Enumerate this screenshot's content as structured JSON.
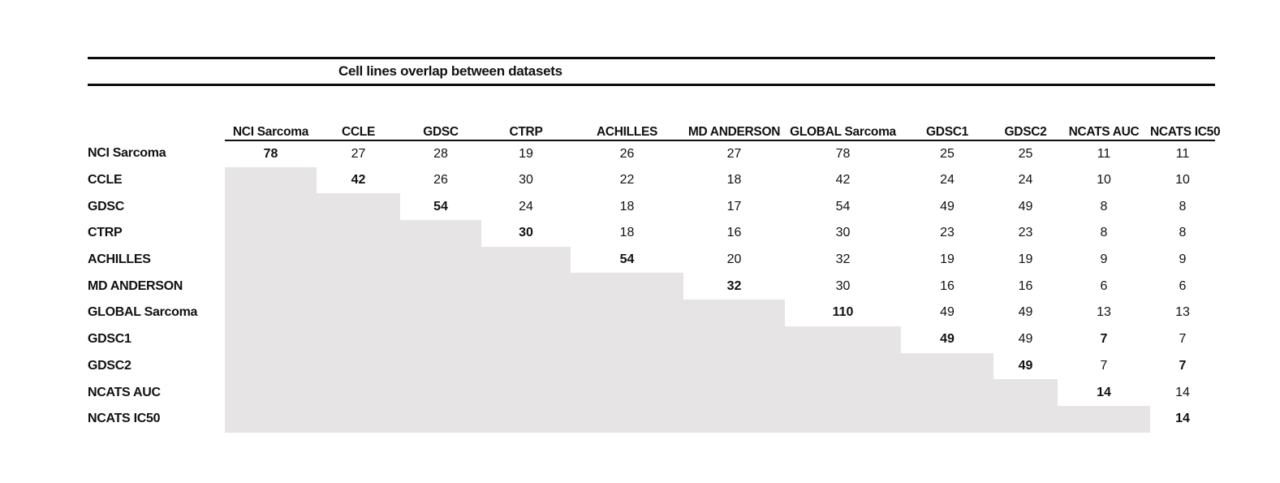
{
  "chart_data": {
    "type": "table",
    "title": "Cell lines overlap between datasets",
    "columns": [
      "NCI Sarcoma",
      "CCLE",
      "GDSC",
      "CTRP",
      "ACHILLES",
      "MD ANDERSON",
      "GLOBAL Sarcoma",
      "GDSC1",
      "GDSC2",
      "NCATS AUC",
      "NCATS IC50"
    ],
    "rows": [
      {
        "label": "NCI Sarcoma",
        "values": [
          78,
          27,
          28,
          19,
          26,
          27,
          78,
          25,
          25,
          11,
          11
        ],
        "bold_cols": [
          0
        ]
      },
      {
        "label": "CCLE",
        "values": [
          null,
          42,
          26,
          30,
          22,
          18,
          42,
          24,
          24,
          10,
          10
        ],
        "bold_cols": [
          1
        ]
      },
      {
        "label": "GDSC",
        "values": [
          null,
          null,
          54,
          24,
          18,
          17,
          54,
          49,
          49,
          8,
          8
        ],
        "bold_cols": [
          2
        ]
      },
      {
        "label": "CTRP",
        "values": [
          null,
          null,
          null,
          30,
          18,
          16,
          30,
          23,
          23,
          8,
          8
        ],
        "bold_cols": [
          3
        ]
      },
      {
        "label": "ACHILLES",
        "values": [
          null,
          null,
          null,
          null,
          54,
          20,
          32,
          19,
          19,
          9,
          9
        ],
        "bold_cols": [
          4
        ]
      },
      {
        "label": "MD ANDERSON",
        "values": [
          null,
          null,
          null,
          null,
          null,
          32,
          30,
          16,
          16,
          6,
          6
        ],
        "bold_cols": [
          5
        ]
      },
      {
        "label": "GLOBAL Sarcoma",
        "values": [
          null,
          null,
          null,
          null,
          null,
          null,
          110,
          49,
          49,
          13,
          13
        ],
        "bold_cols": [
          6
        ]
      },
      {
        "label": "GDSC1",
        "values": [
          null,
          null,
          null,
          null,
          null,
          null,
          null,
          49,
          49,
          7,
          7
        ],
        "bold_cols": [
          7,
          9
        ]
      },
      {
        "label": "GDSC2",
        "values": [
          null,
          null,
          null,
          null,
          null,
          null,
          null,
          null,
          49,
          7,
          7
        ],
        "bold_cols": [
          8,
          10
        ]
      },
      {
        "label": "NCATS AUC",
        "values": [
          null,
          null,
          null,
          null,
          null,
          null,
          null,
          null,
          null,
          14,
          14
        ],
        "bold_cols": [
          9
        ]
      },
      {
        "label": "NCATS IC50",
        "values": [
          null,
          null,
          null,
          null,
          null,
          null,
          null,
          null,
          null,
          null,
          14
        ],
        "bold_cols": [
          10
        ]
      }
    ],
    "shading": "cells below the diagonal are shaded (no value)",
    "colors": {
      "shaded_cell": "#e6e4e4",
      "rule": "#0a0a0a",
      "text": "#111111",
      "background": "#ffffff"
    }
  }
}
